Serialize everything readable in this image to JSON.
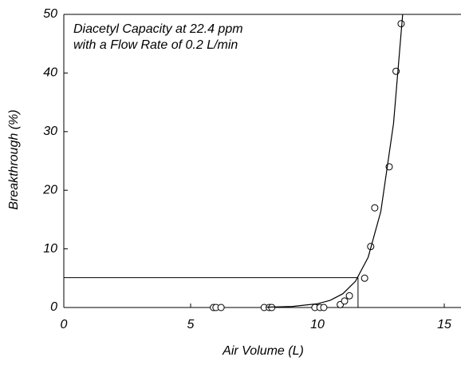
{
  "chart_data": {
    "type": "scatter",
    "annotation": [
      "Diacetyl Capacity at 22.4 ppm",
      "with a Flow Rate of 0.2 L/min"
    ],
    "x_label": "Air Volume (L)",
    "y_label": "Breakthrough (%)",
    "xlim": [
      0,
      15.66
    ],
    "ylim": [
      0,
      50
    ],
    "xticks": [
      0,
      5,
      10,
      15
    ],
    "yticks": [
      0,
      10,
      20,
      30,
      40,
      50
    ],
    "series": [
      {
        "mode": "markers",
        "color": "#000000",
        "x": [
          5.9,
          6.0,
          6.2,
          7.9,
          8.1,
          8.2,
          9.9,
          10.1,
          10.25,
          10.9,
          11.07,
          11.26,
          11.86,
          12.1,
          12.26,
          12.83,
          13.1,
          13.3
        ],
        "values": [
          0,
          0,
          0,
          0,
          0,
          0,
          0,
          0,
          0,
          0.5,
          1.1,
          2.0,
          5.0,
          10.4,
          17.0,
          24.0,
          40.3,
          48.4
        ]
      },
      {
        "mode": "line",
        "color": "#000000",
        "x": [
          8,
          9,
          10,
          10.5,
          11,
          11.5,
          12,
          12.5,
          13,
          13.36
        ],
        "values": [
          0.048,
          0.175,
          0.64,
          1.22,
          2.34,
          4.48,
          8.57,
          16.4,
          31.4,
          50
        ]
      }
    ],
    "reference": {
      "x": 11.6,
      "y": 5.1
    }
  }
}
